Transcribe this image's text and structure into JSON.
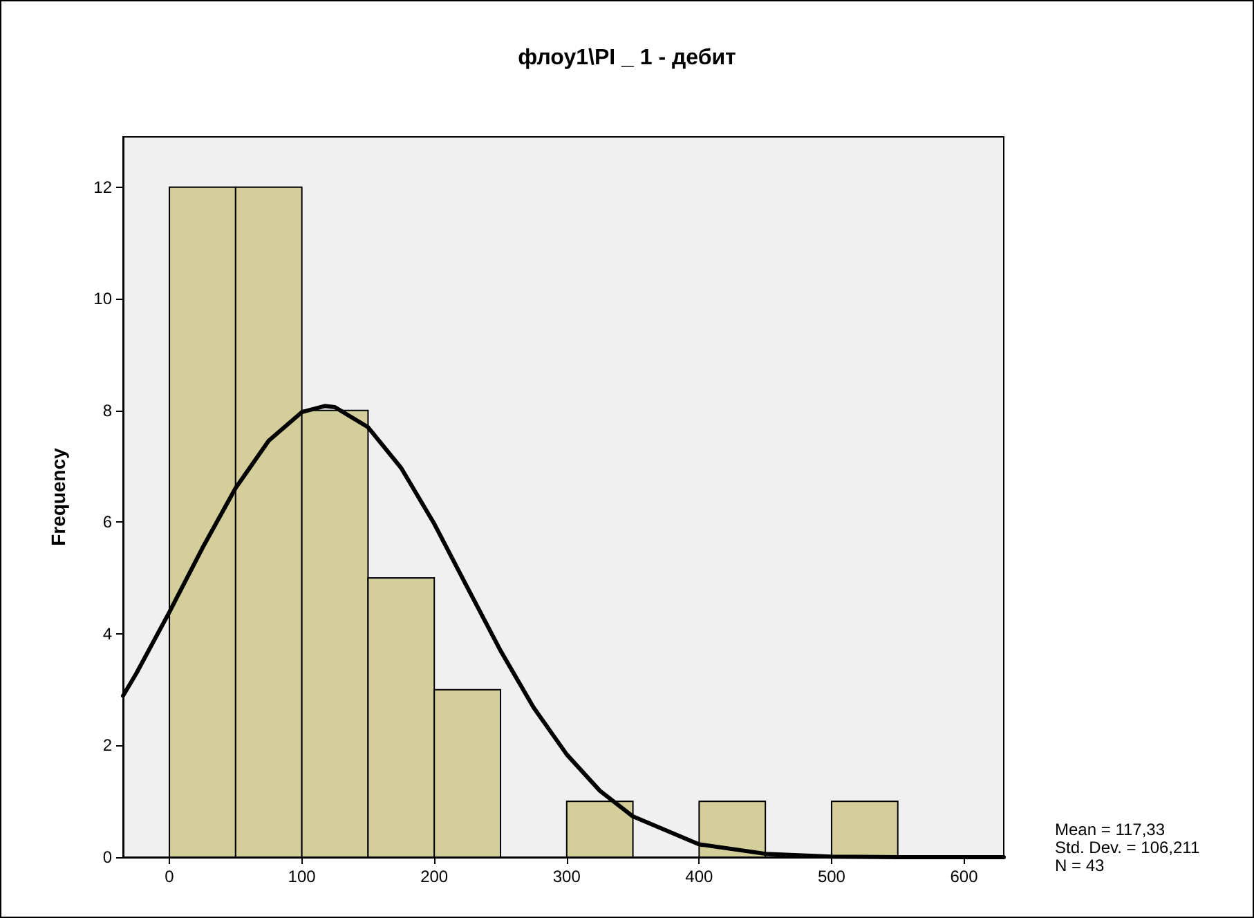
{
  "chart_data": {
    "type": "histogram",
    "title": "флоу1\\PI _ 1 - дебит",
    "ylabel": "Frequency",
    "bins": [
      0,
      50,
      100,
      150,
      200,
      250,
      300,
      350,
      400,
      450,
      500,
      550
    ],
    "values": [
      12,
      12,
      8,
      5,
      3,
      0,
      1,
      0,
      1,
      0,
      1
    ],
    "color": "#d4cf9a",
    "series": [
      {
        "type": "line",
        "color": "#000000",
        "x": [
          -35,
          -25,
          0,
          25,
          50,
          75,
          100,
          117.33,
          125,
          150,
          175,
          200,
          225,
          250,
          275,
          300,
          325,
          350,
          400,
          450,
          500,
          550,
          630
        ],
        "values": [
          2.89,
          3.29,
          4.39,
          5.54,
          6.61,
          7.46,
          7.97,
          8.08,
          8.06,
          7.7,
          6.97,
          5.97,
          4.83,
          3.7,
          2.68,
          1.84,
          1.19,
          0.73,
          0.23,
          0.06,
          0.01,
          0,
          0
        ]
      }
    ],
    "xlim": [
      -35,
      630
    ],
    "xticks": [
      0,
      100,
      200,
      300,
      400,
      500,
      600
    ],
    "ylim": [
      0,
      12.9
    ],
    "yticks": [
      0,
      2,
      4,
      6,
      8,
      10,
      12
    ],
    "grid": false,
    "marker": "none",
    "line_style": "solid",
    "annotations": [
      "Mean = 117,33",
      "Std. Dev. = 106,211",
      "N = 43"
    ]
  }
}
